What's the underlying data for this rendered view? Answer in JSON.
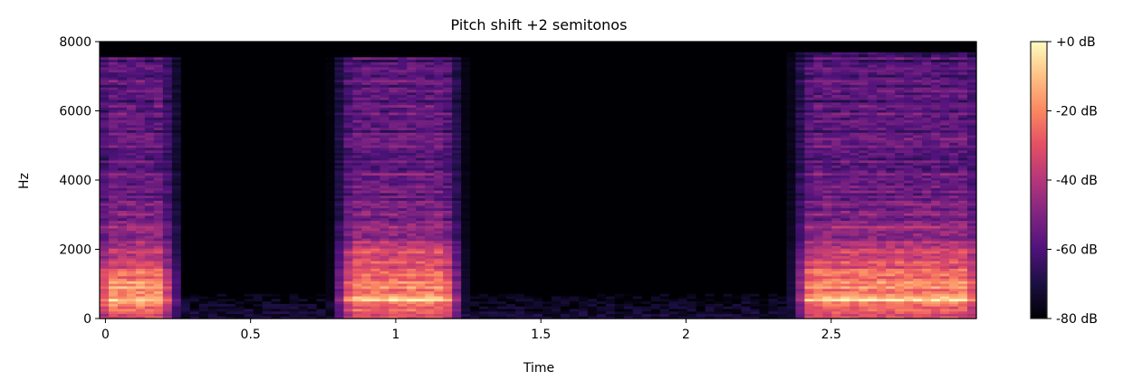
{
  "chart_data": {
    "type": "heatmap",
    "title": "Pitch shift +2 semitonos",
    "xlabel": "Time",
    "ylabel": "Hz",
    "xlim": [
      -0.02,
      3.0
    ],
    "ylim": [
      0,
      8000
    ],
    "xticks": [
      0,
      0.5,
      1,
      1.5,
      2,
      2.5
    ],
    "xtick_labels": [
      "0",
      "0.5",
      "1",
      "1.5",
      "2",
      "2.5"
    ],
    "yticks": [
      0,
      2000,
      4000,
      6000,
      8000
    ],
    "ytick_labels": [
      "0",
      "2000",
      "4000",
      "6000",
      "8000"
    ],
    "colormap": "magma",
    "colorbar": {
      "range_db": [
        -80,
        0
      ],
      "ticks": [
        0,
        -20,
        -40,
        -60,
        -80
      ],
      "tick_labels": [
        "+0 dB",
        "-20 dB",
        "-40 dB",
        "-60 dB",
        "-80 dB"
      ]
    },
    "segments": [
      {
        "start": -0.02,
        "end": 0.22,
        "peak_db": -5,
        "max_hz": 7600,
        "formants_hz": [
          500,
          950,
          1400
        ]
      },
      {
        "start": 0.82,
        "end": 1.2,
        "peak_db": -5,
        "max_hz": 7600,
        "formants_hz": [
          550,
          1000,
          1700
        ]
      },
      {
        "start": 2.4,
        "end": 3.0,
        "peak_db": -5,
        "max_hz": 7700,
        "formants_hz": [
          550,
          1000,
          1600
        ]
      }
    ],
    "background_db": -80,
    "low_freq_hum": {
      "max_hz": 700,
      "level_db": -65
    }
  }
}
